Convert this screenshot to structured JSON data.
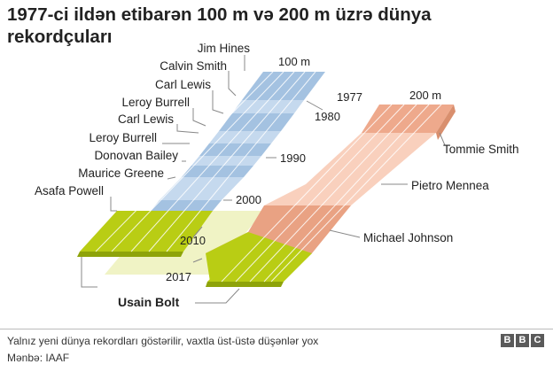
{
  "title": "1977-ci ildən etibarən 100 m və 200 m üzrə dünya rekordçuları",
  "track_labels": {
    "track100": "100 m",
    "track200": "200 m"
  },
  "years": [
    "1977",
    "1980",
    "1990",
    "2000",
    "2010",
    "2017"
  ],
  "records_100m": [
    "Jim Hines",
    "Calvin Smith",
    "Carl Lewis",
    "Leroy Burrell",
    "Carl Lewis",
    "Leroy Burrell",
    "Donovan Bailey",
    "Maurice Greene",
    "Asafa Powell"
  ],
  "records_200m": [
    "Tommie Smith",
    "Pietro Mennea",
    "Michael Johnson"
  ],
  "shared_record": "Usain Bolt",
  "colors": {
    "track100_light": "#c9dcef",
    "track100_dark": "#9fbedf",
    "track200_light": "#f8ccb7",
    "track200_dark": "#e9a487",
    "bolt": "#b8cc12",
    "bolt_light": "#f0f3c5"
  },
  "footer": {
    "note": "Yalnız yeni dünya rekordları göstərilir, vaxtla üst-üstə düşənlər yox",
    "source": "Mənbə: IAAF",
    "logo_letters": [
      "B",
      "B",
      "C"
    ]
  }
}
